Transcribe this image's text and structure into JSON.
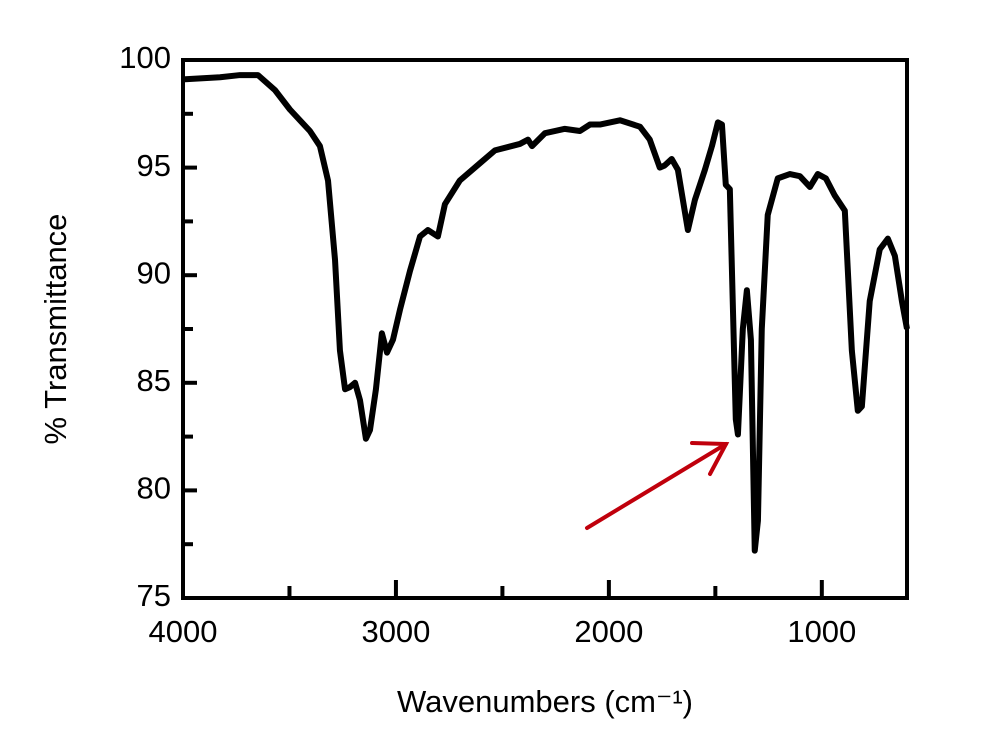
{
  "chart_data": {
    "type": "line",
    "ylabel": "% Transmittance",
    "xlabel": "Wavenumbers (cm⁻¹)",
    "xlim": [
      4000,
      600
    ],
    "ylim": [
      75,
      100
    ],
    "xticks": [
      4000,
      3000,
      2000,
      1000
    ],
    "xminorticks": [
      3500,
      2500,
      1500
    ],
    "yticks": [
      75,
      80,
      85,
      90,
      95,
      100
    ],
    "yminorticks": [
      77.5,
      82.5,
      87.5,
      92.5,
      97.5
    ],
    "series": [
      {
        "color": "#000000",
        "x": [
          4000,
          3826,
          3732,
          3648,
          3568,
          3498,
          3404,
          3357,
          3319,
          3286,
          3263,
          3239,
          3216,
          3192,
          3169,
          3141,
          3122,
          3094,
          3066,
          3042,
          3014,
          2981,
          2934,
          2887,
          2850,
          2803,
          2770,
          2700,
          2606,
          2535,
          2418,
          2380,
          2361,
          2300,
          2207,
          2136,
          2089,
          2042,
          1948,
          1854,
          1808,
          1761,
          1738,
          1705,
          1676,
          1629,
          1596,
          1549,
          1516,
          1488,
          1469,
          1451,
          1432,
          1404,
          1394,
          1371,
          1352,
          1333,
          1315,
          1300,
          1282,
          1254,
          1207,
          1150,
          1103,
          1056,
          1019,
          981,
          939,
          892,
          859,
          831,
          812,
          775,
          728,
          690,
          657,
          624,
          600
        ],
        "values": [
          99.1,
          99.2,
          99.3,
          99.3,
          98.6,
          97.7,
          96.7,
          96.0,
          94.4,
          90.7,
          86.5,
          84.7,
          84.8,
          85.0,
          84.2,
          82.4,
          82.8,
          84.7,
          87.3,
          86.4,
          87.0,
          88.4,
          90.2,
          91.8,
          92.1,
          91.8,
          93.3,
          94.4,
          95.2,
          95.8,
          96.1,
          96.3,
          96.0,
          96.6,
          96.8,
          96.7,
          97.0,
          97.0,
          97.2,
          96.9,
          96.3,
          95.0,
          95.1,
          95.4,
          94.9,
          92.1,
          93.5,
          94.9,
          96.0,
          97.1,
          97.0,
          94.2,
          94.0,
          83.3,
          82.6,
          87.5,
          89.3,
          87.0,
          77.2,
          78.6,
          87.5,
          92.8,
          94.5,
          94.7,
          94.6,
          94.1,
          94.7,
          94.5,
          93.7,
          93.0,
          86.5,
          83.7,
          83.9,
          88.8,
          91.2,
          91.7,
          90.9,
          88.8,
          87.5
        ]
      }
    ]
  }
}
